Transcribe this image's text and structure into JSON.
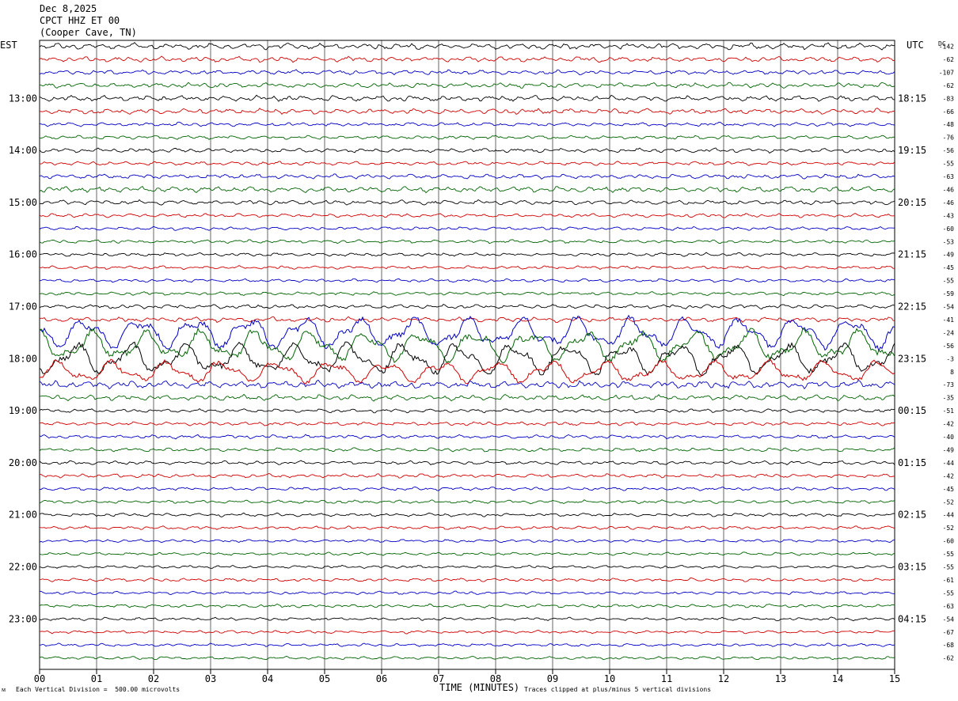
{
  "header": {
    "date": "Dec 8,2025",
    "station": "CPCT HHZ ET 00",
    "location": "(Cooper Cave, TN)"
  },
  "axis": {
    "left_tz": "EST",
    "right_tz": "UTC",
    "dc_label": "DC",
    "x_title": "TIME (MINUTES)"
  },
  "footer": {
    "scale_note": "Each Vertical Division =  500.00 microvolts",
    "clip_note": "Traces clipped at plus/minus 5 vertical divisions"
  },
  "colors": {
    "trace_cycle": [
      "#000000",
      "#d40000",
      "#0000c8",
      "#006400"
    ],
    "grid": "#000000"
  },
  "chart_data": {
    "type": "line",
    "title": "CPCT HHZ ET 00",
    "xlabel": "TIME (MINUTES)",
    "xlim": [
      0,
      15
    ],
    "x_ticks": [
      "00",
      "01",
      "02",
      "03",
      "04",
      "05",
      "06",
      "07",
      "08",
      "09",
      "10",
      "11",
      "12",
      "13",
      "14",
      "15"
    ],
    "traces_per_hour": 4,
    "left_hour_labels": [
      "13:00",
      "14:00",
      "15:00",
      "16:00",
      "17:00",
      "18:00",
      "19:00",
      "20:00",
      "21:00",
      "22:00",
      "23:00"
    ],
    "right_hour_labels": [
      "18:15",
      "19:15",
      "20:15",
      "21:15",
      "22:15",
      "23:15",
      "00:15",
      "01:15",
      "02:15",
      "03:15",
      "04:15"
    ],
    "first_labeled_trace": 4,
    "dc_offsets": [
      -142,
      -62,
      -107,
      -62,
      -83,
      -66,
      -48,
      -76,
      -56,
      -55,
      -63,
      -46,
      -46,
      -43,
      -60,
      -53,
      -49,
      -45,
      -55,
      -59,
      -54,
      -41,
      -24,
      -56,
      -3,
      8,
      -73,
      -35,
      -51,
      -42,
      -40,
      -49,
      -44,
      -42,
      -45,
      -52,
      -44,
      -52,
      -60,
      -55,
      -55,
      -61,
      -55,
      -63,
      -54,
      -67,
      -68,
      -62
    ],
    "trace_amplitude": [
      1.6,
      1.4,
      1.2,
      1.3,
      1.5,
      1.4,
      1.0,
      1.0,
      1.1,
      1.0,
      1.2,
      1.5,
      1.2,
      1.0,
      0.9,
      0.9,
      0.9,
      0.9,
      0.9,
      0.9,
      1.1,
      1.3,
      5.0,
      5.0,
      5.0,
      3.5,
      2.0,
      1.5,
      1.0,
      1.0,
      1.0,
      1.0,
      1.0,
      1.0,
      0.9,
      0.9,
      0.9,
      0.9,
      0.8,
      0.8,
      0.8,
      0.9,
      0.8,
      0.9,
      0.8,
      0.8,
      0.8,
      0.8
    ],
    "event": {
      "description": "large long-period waveform traces",
      "traces": [
        21,
        22,
        23,
        24,
        25,
        26
      ]
    }
  }
}
